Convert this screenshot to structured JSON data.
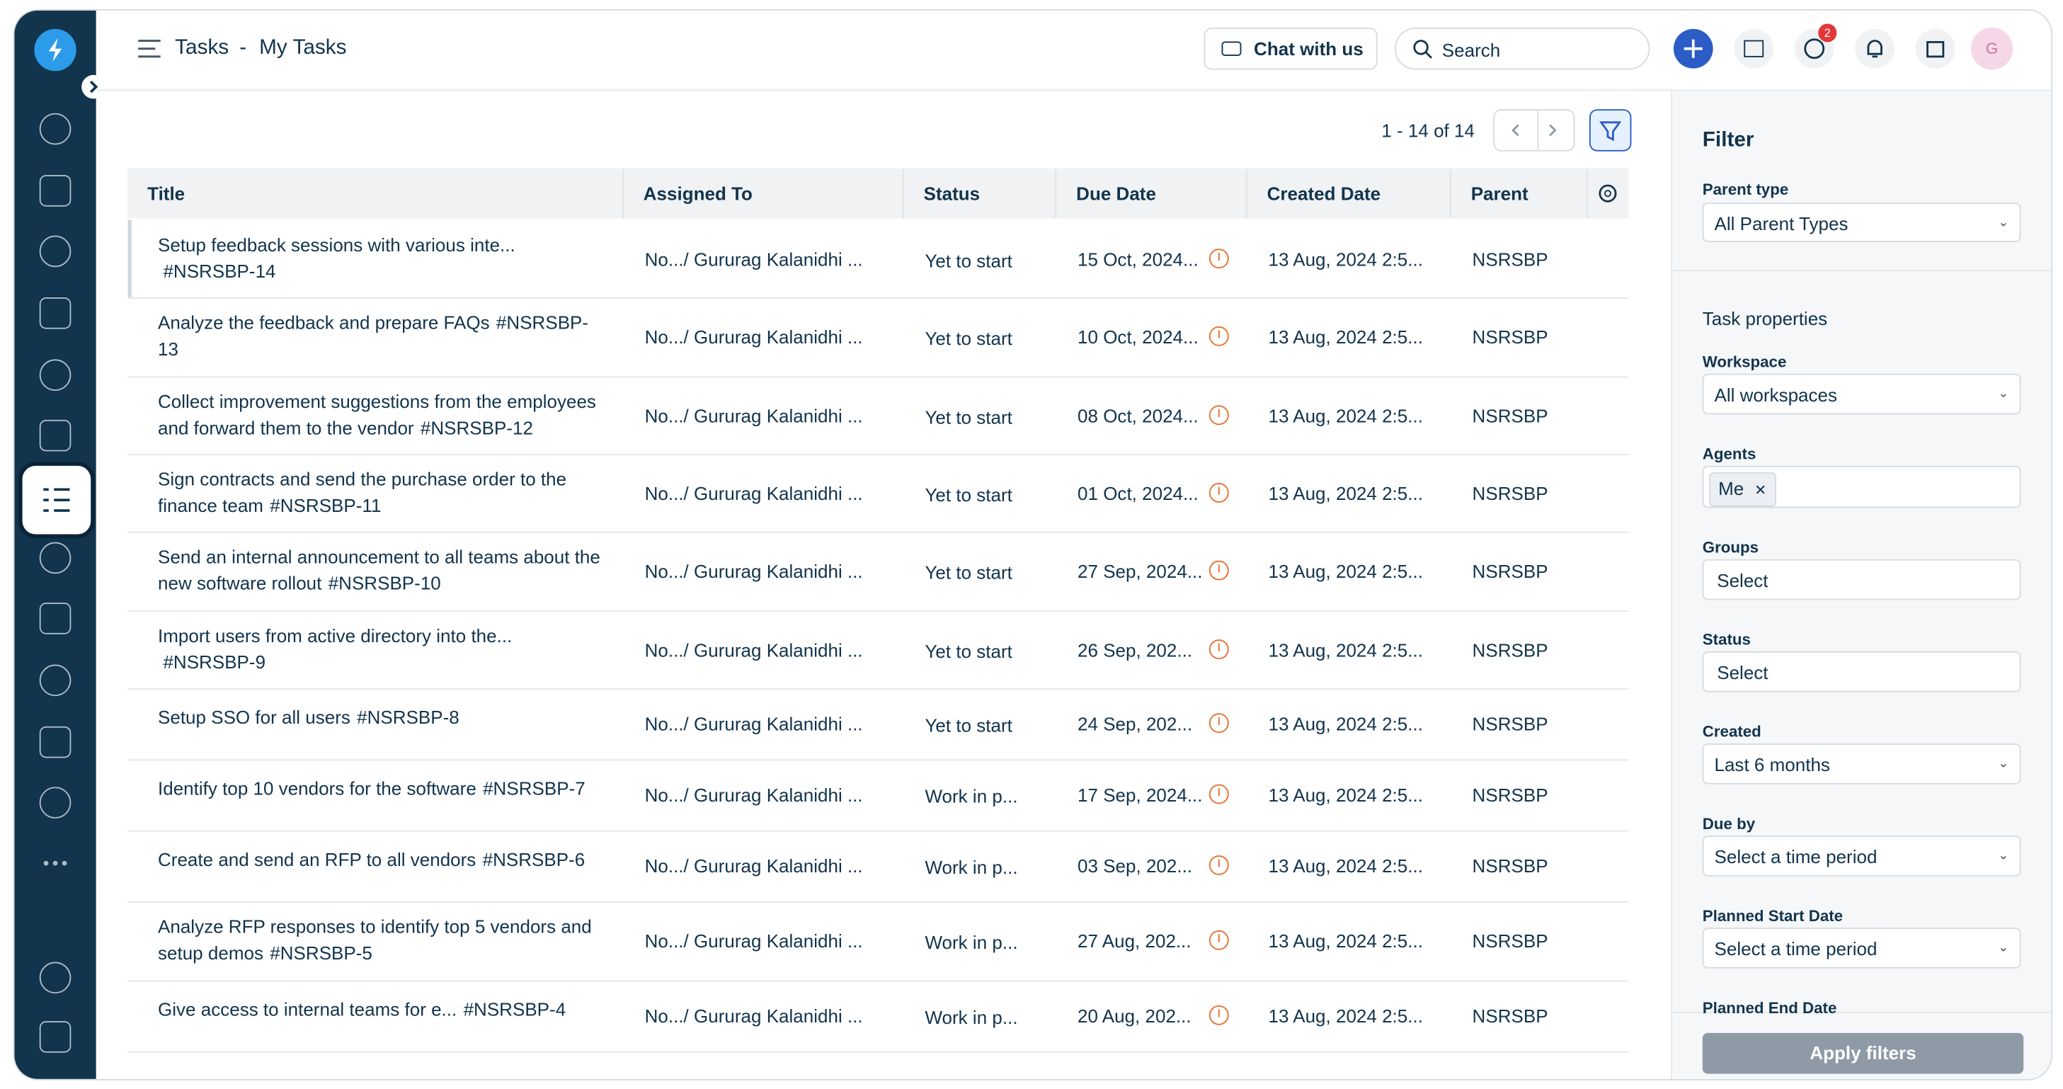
{
  "header": {
    "module": "Tasks",
    "separator": "-",
    "title": "My Tasks",
    "chat": "Chat with us",
    "search": "Search",
    "badge": "2",
    "avatar": "G"
  },
  "pagination": "1 - 14 of 14",
  "table": {
    "columns": [
      "Title",
      "Assigned To",
      "Status",
      "Due Date",
      "Created Date",
      "Parent"
    ],
    "rows": [
      [
        "Setup feedback sessions with various inte...",
        "#NSRSBP-14",
        "No.../ Gururag Kalanidhi ...",
        "Yet to start",
        "15 Oct, 2024...",
        "13 Aug, 2024 2:5...",
        "NSRSBP"
      ],
      [
        "Analyze the feedback and prepare FAQs",
        "#NSRSBP-13",
        "No.../ Gururag Kalanidhi ...",
        "Yet to start",
        "10 Oct, 2024...",
        "13 Aug, 2024 2:5...",
        "NSRSBP"
      ],
      [
        "Collect improvement suggestions from the employees and forward them to the vendor",
        "#NSRSBP-12",
        "No.../ Gururag Kalanidhi ...",
        "Yet to start",
        "08 Oct, 2024...",
        "13 Aug, 2024 2:5...",
        "NSRSBP"
      ],
      [
        "Sign contracts and send the purchase order to the finance team",
        "#NSRSBP-11",
        "No.../ Gururag Kalanidhi ...",
        "Yet to start",
        "01 Oct, 2024...",
        "13 Aug, 2024 2:5...",
        "NSRSBP"
      ],
      [
        "Send an internal announcement to all teams about the new software rollout",
        "#NSRSBP-10",
        "No.../ Gururag Kalanidhi ...",
        "Yet to start",
        "27 Sep, 2024...",
        "13 Aug, 2024 2:5...",
        "NSRSBP"
      ],
      [
        "Import users from active directory into the...",
        "#NSRSBP-9",
        "No.../ Gururag Kalanidhi ...",
        "Yet to start",
        "26 Sep, 202...",
        "13 Aug, 2024 2:5...",
        "NSRSBP"
      ],
      [
        "Setup SSO for all users",
        "#NSRSBP-8",
        "No.../ Gururag Kalanidhi ...",
        "Yet to start",
        "24 Sep, 202...",
        "13 Aug, 2024 2:5...",
        "NSRSBP"
      ],
      [
        "Identify top 10 vendors for the software",
        "#NSRSBP-7",
        "No.../ Gururag Kalanidhi ...",
        "Work in p...",
        "17 Sep, 2024...",
        "13 Aug, 2024 2:5...",
        "NSRSBP"
      ],
      [
        "Create and send an RFP to all vendors",
        "#NSRSBP-6",
        "No.../ Gururag Kalanidhi ...",
        "Work in p...",
        "03 Sep, 202...",
        "13 Aug, 2024 2:5...",
        "NSRSBP"
      ],
      [
        "Analyze RFP responses to identify top 5 vendors and setup demos",
        "#NSRSBP-5",
        "No.../ Gururag Kalanidhi ...",
        "Work in p...",
        "27 Aug, 202...",
        "13 Aug, 2024 2:5...",
        "NSRSBP"
      ],
      [
        "Give access to internal teams for e...",
        "#NSRSBP-4",
        "No.../ Gururag Kalanidhi ...",
        "Work in p...",
        "20 Aug, 202...",
        "13 Aug, 2024 2:5...",
        "NSRSBP"
      ]
    ]
  },
  "filter": {
    "title": "Filter",
    "parent_label": "Parent type",
    "parent_value": "All Parent Types",
    "section": "Task properties",
    "fields": [
      {
        "label": "Workspace",
        "value": "All workspaces",
        "kind": "dropdown"
      },
      {
        "label": "Agents",
        "value": "Me",
        "kind": "chip"
      },
      {
        "label": "Groups",
        "value": "Select",
        "kind": "text"
      },
      {
        "label": "Status",
        "value": "Select",
        "kind": "text"
      },
      {
        "label": "Created",
        "value": "Last 6 months",
        "kind": "dropdown"
      },
      {
        "label": "Due by",
        "value": "Select a time period",
        "kind": "dropdown"
      },
      {
        "label": "Planned Start Date",
        "value": "Select a time period",
        "kind": "dropdown"
      },
      {
        "label": "Planned End Date",
        "value": "",
        "kind": "cut"
      }
    ],
    "apply": "Apply filters"
  }
}
